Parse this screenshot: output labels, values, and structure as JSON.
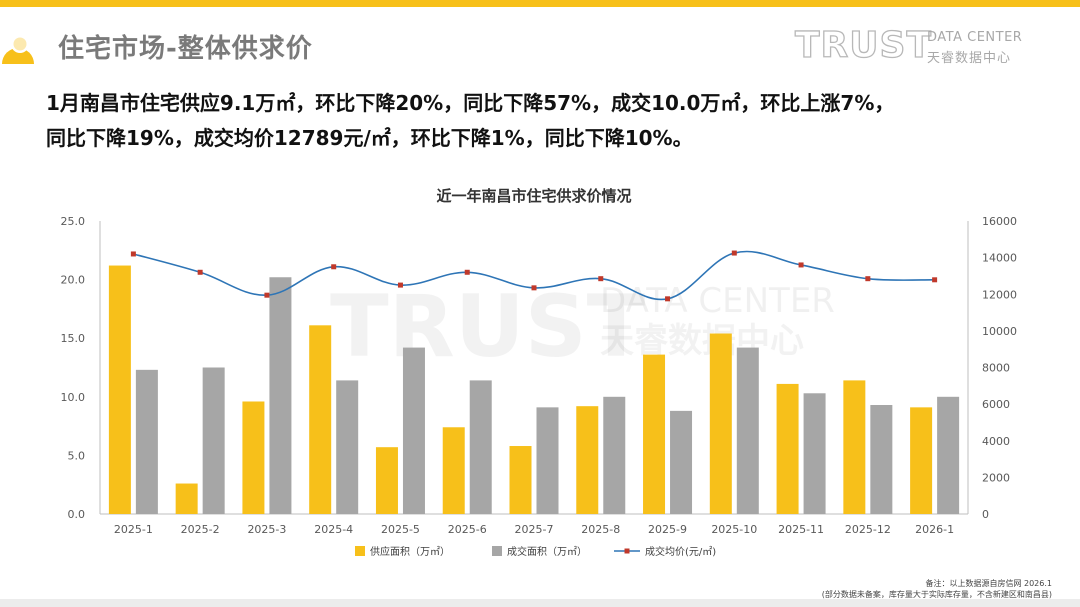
{
  "slide": {
    "title": "住宅市场-整体供求价",
    "summary_line1": "1月南昌市住宅供应9.1万㎡，环比下降20%，同比下降57%，成交10.0万㎡，环比上涨7%，",
    "summary_line2": "同比下降19%，成交均价12789元/㎡，环比下降1%，同比下降10%。"
  },
  "brand": {
    "name": "TRUST",
    "subtitle_en": "DATA CENTER",
    "subtitle_cn": "天睿数据中心"
  },
  "watermark": {
    "name": "TRUST",
    "subtitle_en": "DATA CENTER",
    "subtitle_cn": "天睿数据中心"
  },
  "colors": {
    "accent": "#f7c01a",
    "supply": "#f7c01a",
    "deal": "#a6a6a6",
    "price_line": "#2e75b6",
    "price_marker": "#c0392b",
    "title_gray": "#7a7a7a"
  },
  "footer": {
    "note_line1": "备注：以上数据源自房信网   2026.1",
    "note_line2": "(部分数据未备案，库存量大于实际库存量，不含新建区和南昌县)"
  },
  "chart_data": {
    "type": "bar",
    "title": "近一年南昌市住宅供求价情况",
    "categories": [
      "2025-1",
      "2025-2",
      "2025-3",
      "2025-4",
      "2025-5",
      "2025-6",
      "2025-7",
      "2025-8",
      "2025-9",
      "2025-10",
      "2025-11",
      "2025-12",
      "2026-1"
    ],
    "series": [
      {
        "name": "供应面积（万㎡）",
        "type": "bar",
        "axis": "left",
        "color": "#f7c01a",
        "values": [
          21.2,
          2.6,
          9.6,
          16.1,
          5.7,
          7.4,
          5.8,
          9.2,
          13.6,
          15.4,
          11.1,
          11.4,
          9.1
        ]
      },
      {
        "name": "成交面积（万㎡）",
        "type": "bar",
        "axis": "left",
        "color": "#a6a6a6",
        "values": [
          12.3,
          12.5,
          20.2,
          11.4,
          14.2,
          11.4,
          9.1,
          10.0,
          8.8,
          14.2,
          10.3,
          9.3,
          10.0
        ]
      },
      {
        "name": "成交均价(元/㎡)",
        "type": "line",
        "axis": "right",
        "color": "#2e75b6",
        "values": [
          14200,
          13200,
          11950,
          13500,
          12500,
          13200,
          12350,
          12850,
          11750,
          14250,
          13600,
          12850,
          12789
        ]
      }
    ],
    "y_left": {
      "min": 0,
      "max": 25,
      "step": 5,
      "tick_labels": [
        "0.0",
        "5.0",
        "10.0",
        "15.0",
        "20.0",
        "25.0"
      ]
    },
    "y_right": {
      "min": 0,
      "max": 16000,
      "step": 2000,
      "tick_labels": [
        "0",
        "2000",
        "4000",
        "6000",
        "8000",
        "10000",
        "12000",
        "14000",
        "16000"
      ]
    },
    "legend_position": "bottom",
    "grid": false
  }
}
